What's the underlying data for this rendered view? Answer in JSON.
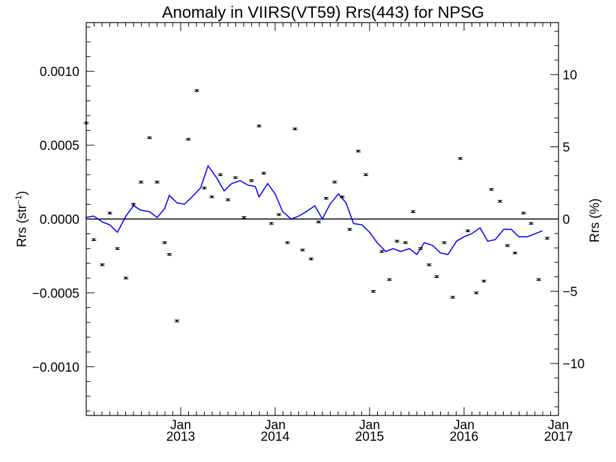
{
  "chart_data": {
    "type": "scatter",
    "title": "Anomaly in VIIRS(VT59) Rrs(443) for NPSG",
    "ylabel_left": {
      "base": "Rrs (str",
      "sup": "−1",
      "close": ")"
    },
    "ylabel_right": "Rrs (%)",
    "xlabel": "",
    "xlim": [
      2012.0,
      2017.0
    ],
    "ylim_left": [
      -0.00133,
      0.00133
    ],
    "ylim_right": [
      -13.6,
      13.6
    ],
    "yticks_left": [
      {
        "value": 0.001,
        "label": "0.0010"
      },
      {
        "value": 0.0005,
        "label": "0.0005"
      },
      {
        "value": 0.0,
        "label": "0.0000"
      },
      {
        "value": -0.0005,
        "label": "−0.0005"
      },
      {
        "value": -0.001,
        "label": "−0.0010"
      }
    ],
    "yticks_right": [
      {
        "value": 10,
        "label": "10"
      },
      {
        "value": 5,
        "label": "5"
      },
      {
        "value": 0,
        "label": "0"
      },
      {
        "value": -5,
        "label": "−5"
      },
      {
        "value": -10,
        "label": "−10"
      }
    ],
    "xticks": [
      {
        "value": 2013.0,
        "month": "Jan",
        "year": "2013"
      },
      {
        "value": 2014.0,
        "month": "Jan",
        "year": "2014"
      },
      {
        "value": 2015.0,
        "month": "Jan",
        "year": "2015"
      },
      {
        "value": 2016.0,
        "month": "Jan",
        "year": "2016"
      },
      {
        "value": 2017.0,
        "month": "Jan",
        "year": "2017"
      }
    ],
    "reference_line": 0.0,
    "colors": {
      "line": "#0000ff",
      "points": "#000000",
      "axes": "#000000"
    },
    "series": [
      {
        "kind": "points_with_error_bars",
        "error": 6e-06,
        "points": [
          [
            2012.0,
            0.00065
          ],
          [
            2012.08,
            -0.00014
          ],
          [
            2012.17,
            -0.00031
          ],
          [
            2012.25,
            4e-05
          ],
          [
            2012.33,
            -0.0002
          ],
          [
            2012.42,
            -0.0004
          ],
          [
            2012.5,
            0.0001
          ],
          [
            2012.58,
            0.00025
          ],
          [
            2012.67,
            0.00055
          ],
          [
            2012.75,
            0.00025
          ],
          [
            2012.83,
            -0.00016
          ],
          [
            2012.88,
            -0.00024
          ],
          [
            2012.96,
            -0.00069
          ],
          [
            2013.08,
            0.00054
          ],
          [
            2013.17,
            0.00087
          ],
          [
            2013.25,
            0.00021
          ],
          [
            2013.33,
            0.00015
          ],
          [
            2013.42,
            0.0003
          ],
          [
            2013.5,
            0.00013
          ],
          [
            2013.58,
            0.00028
          ],
          [
            2013.67,
            1e-05
          ],
          [
            2013.75,
            0.00026
          ],
          [
            2013.83,
            0.00063
          ],
          [
            2013.88,
            0.00031
          ],
          [
            2013.96,
            -3e-05
          ],
          [
            2014.04,
            3e-05
          ],
          [
            2014.13,
            -0.00016
          ],
          [
            2014.21,
            0.00061
          ],
          [
            2014.29,
            -0.00021
          ],
          [
            2014.38,
            -0.00027
          ],
          [
            2014.46,
            -2e-05
          ],
          [
            2014.54,
            0.00014
          ],
          [
            2014.63,
            0.00025
          ],
          [
            2014.71,
            0.00015
          ],
          [
            2014.79,
            -7e-05
          ],
          [
            2014.88,
            0.00046
          ],
          [
            2014.96,
            0.0003
          ],
          [
            2015.04,
            -0.00049
          ],
          [
            2015.13,
            -0.00022
          ],
          [
            2015.21,
            -0.00041
          ],
          [
            2015.29,
            -0.00015
          ],
          [
            2015.38,
            -0.00016
          ],
          [
            2015.46,
            5e-05
          ],
          [
            2015.54,
            -0.0002
          ],
          [
            2015.63,
            -0.00031
          ],
          [
            2015.71,
            -0.00039
          ],
          [
            2015.79,
            -0.00016
          ],
          [
            2015.88,
            -0.00053
          ],
          [
            2015.96,
            0.00041
          ],
          [
            2016.04,
            -8e-05
          ],
          [
            2016.13,
            -0.0005
          ],
          [
            2016.21,
            -0.00042
          ],
          [
            2016.29,
            0.0002
          ],
          [
            2016.38,
            0.00012
          ],
          [
            2016.46,
            -0.00018
          ],
          [
            2016.54,
            -0.00023
          ],
          [
            2016.63,
            4e-05
          ],
          [
            2016.71,
            -3e-05
          ],
          [
            2016.79,
            -0.00041
          ],
          [
            2016.88,
            -0.00013
          ]
        ]
      },
      {
        "kind": "line",
        "color": "#0000ff",
        "points": [
          [
            2011.99,
            1e-05
          ],
          [
            2012.08,
            2e-05
          ],
          [
            2012.17,
            -2e-05
          ],
          [
            2012.25,
            -4e-05
          ],
          [
            2012.33,
            -9e-05
          ],
          [
            2012.42,
            2e-05
          ],
          [
            2012.5,
            9e-05
          ],
          [
            2012.58,
            6e-05
          ],
          [
            2012.67,
            5e-05
          ],
          [
            2012.75,
            1e-05
          ],
          [
            2012.83,
            7e-05
          ],
          [
            2012.88,
            0.00016
          ],
          [
            2012.96,
            0.00011
          ],
          [
            2013.04,
            0.0001
          ],
          [
            2013.12,
            0.00015
          ],
          [
            2013.21,
            0.00021
          ],
          [
            2013.29,
            0.00036
          ],
          [
            2013.38,
            0.00028
          ],
          [
            2013.46,
            0.00019
          ],
          [
            2013.54,
            0.00024
          ],
          [
            2013.63,
            0.00026
          ],
          [
            2013.71,
            0.00023
          ],
          [
            2013.79,
            0.00022
          ],
          [
            2013.83,
            0.00015
          ],
          [
            2013.92,
            0.00024
          ],
          [
            2014.0,
            0.00017
          ],
          [
            2014.08,
            5e-05
          ],
          [
            2014.17,
            0.0
          ],
          [
            2014.25,
            2e-05
          ],
          [
            2014.33,
            5e-05
          ],
          [
            2014.42,
            9e-05
          ],
          [
            2014.5,
            0.0
          ],
          [
            2014.58,
            0.0001
          ],
          [
            2014.67,
            0.00017
          ],
          [
            2014.75,
            0.00011
          ],
          [
            2014.83,
            -3e-05
          ],
          [
            2014.92,
            -4e-05
          ],
          [
            2015.0,
            -9e-05
          ],
          [
            2015.08,
            -0.00016
          ],
          [
            2015.17,
            -0.00022
          ],
          [
            2015.25,
            -0.0002
          ],
          [
            2015.33,
            -0.00022
          ],
          [
            2015.42,
            -0.0002
          ],
          [
            2015.5,
            -0.00024
          ],
          [
            2015.58,
            -0.00016
          ],
          [
            2015.67,
            -0.00018
          ],
          [
            2015.75,
            -0.00023
          ],
          [
            2015.83,
            -0.00024
          ],
          [
            2015.92,
            -0.00015
          ],
          [
            2016.0,
            -0.00012
          ],
          [
            2016.08,
            -0.0001
          ],
          [
            2016.17,
            -6e-05
          ],
          [
            2016.25,
            -0.00015
          ],
          [
            2016.33,
            -0.00014
          ],
          [
            2016.42,
            -7e-05
          ],
          [
            2016.5,
            -7e-05
          ],
          [
            2016.58,
            -0.00012
          ],
          [
            2016.67,
            -0.00012
          ],
          [
            2016.75,
            -0.0001
          ],
          [
            2016.83,
            -8e-05
          ]
        ]
      }
    ]
  }
}
